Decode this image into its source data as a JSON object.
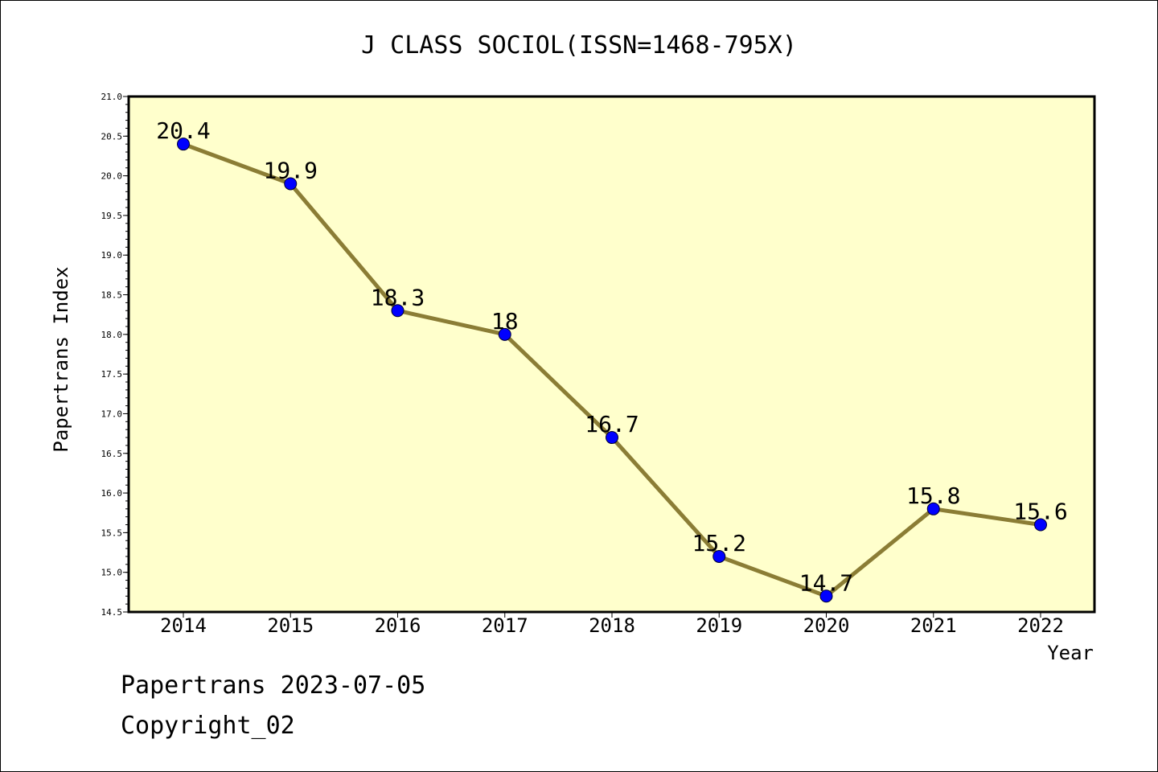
{
  "chart_data": {
    "type": "line",
    "title": "J CLASS SOCIOL(ISSN=1468-795X)",
    "xlabel": "Year",
    "ylabel": "Papertrans Index",
    "categories": [
      "2014",
      "2015",
      "2016",
      "2017",
      "2018",
      "2019",
      "2020",
      "2021",
      "2022"
    ],
    "series": [
      {
        "values": [
          20.4,
          19.9,
          18.3,
          18.0,
          16.7,
          15.2,
          14.7,
          15.8,
          15.6
        ],
        "data_labels": [
          "20.4",
          "19.9",
          "18.3",
          "18",
          "16.7",
          "15.2",
          "14.7",
          "15.8",
          "15.6"
        ]
      }
    ],
    "ylim": [
      14.5,
      21.0
    ],
    "yticks": [
      "14.5",
      "15.0",
      "15.5",
      "16.0",
      "16.5",
      "17.0",
      "17.5",
      "18.0",
      "18.5",
      "19.0",
      "19.5",
      "20.0",
      "20.5",
      "21.0"
    ],
    "grid": false,
    "legend": "none",
    "colors": {
      "plot_background": "#ffffcc",
      "line": "#8b7d35",
      "marker": "#0000ff"
    }
  },
  "footer": {
    "date_text": "Papertrans 2023-07-05",
    "copyright_text": "Copyright_02"
  }
}
